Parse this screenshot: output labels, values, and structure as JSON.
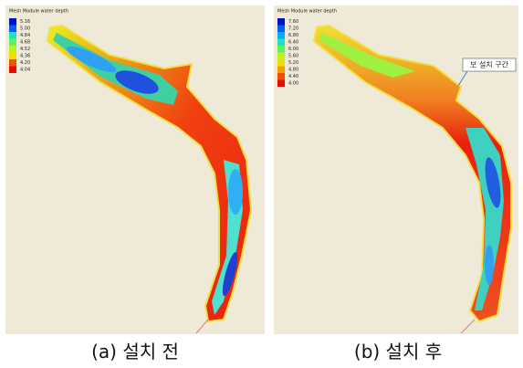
{
  "panels": [
    {
      "legend": {
        "title": "Mesh Module water depth",
        "values": [
          "5.16",
          "5.00",
          "4.84",
          "4.68",
          "4.52",
          "4.36",
          "4.20",
          "4.04"
        ]
      },
      "caption": "(a)  설치 전"
    },
    {
      "legend": {
        "title": "Mesh Module water depth",
        "values": [
          "7.60",
          "7.20",
          "6.80",
          "6.40",
          "6.00",
          "5.60",
          "5.20",
          "4.80",
          "4.40",
          "4.00"
        ]
      },
      "caption": "(b) 설치 후",
      "annotation": "보 설치 구간"
    }
  ]
}
